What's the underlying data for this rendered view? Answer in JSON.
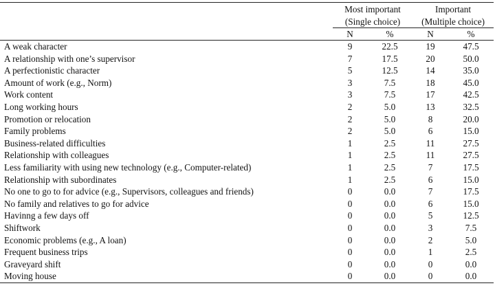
{
  "header": {
    "group1_line1": "Most important",
    "group1_line2": "(Single choice)",
    "group2_line1": "Important",
    "group2_line2": "(Multiple choice)",
    "col_n": "N",
    "col_pct": "%"
  },
  "rows": [
    {
      "label": "A weak character",
      "n1": "9",
      "p1": "22.5",
      "n2": "19",
      "p2": "47.5"
    },
    {
      "label": "A relationship with one’s supervisor",
      "n1": "7",
      "p1": "17.5",
      "n2": "20",
      "p2": "50.0"
    },
    {
      "label": "A perfectionistic character",
      "n1": "5",
      "p1": "12.5",
      "n2": "14",
      "p2": "35.0"
    },
    {
      "label": "Amount of work (e.g., Norm)",
      "n1": "3",
      "p1": "7.5",
      "n2": "18",
      "p2": "45.0"
    },
    {
      "label": "Work content",
      "n1": "3",
      "p1": "7.5",
      "n2": "17",
      "p2": "42.5"
    },
    {
      "label": "Long working hours",
      "n1": "2",
      "p1": "5.0",
      "n2": "13",
      "p2": "32.5"
    },
    {
      "label": "Promotion or relocation",
      "n1": "2",
      "p1": "5.0",
      "n2": "8",
      "p2": "20.0"
    },
    {
      "label": "Family problems",
      "n1": "2",
      "p1": "5.0",
      "n2": "6",
      "p2": "15.0"
    },
    {
      "label": "Business-related difficulties",
      "n1": "1",
      "p1": "2.5",
      "n2": "11",
      "p2": "27.5"
    },
    {
      "label": "Relationship with colleagues",
      "n1": "1",
      "p1": "2.5",
      "n2": "11",
      "p2": "27.5"
    },
    {
      "label": "Less familiarity with using new technology (e.g., Computer-related)",
      "n1": "1",
      "p1": "2.5",
      "n2": "7",
      "p2": "17.5"
    },
    {
      "label": "Relationship with subordinates",
      "n1": "1",
      "p1": "2.5",
      "n2": "6",
      "p2": "15.0"
    },
    {
      "label": "No one to go to for advice (e.g., Supervisors, colleagues and friends)",
      "n1": "0",
      "p1": "0.0",
      "n2": "7",
      "p2": "17.5"
    },
    {
      "label": "No family and relatives to go for advice",
      "n1": "0",
      "p1": "0.0",
      "n2": "6",
      "p2": "15.0"
    },
    {
      "label": "Havinng a few days off",
      "n1": "0",
      "p1": "0.0",
      "n2": "5",
      "p2": "12.5"
    },
    {
      "label": "Shiftwork",
      "n1": "0",
      "p1": "0.0",
      "n2": "3",
      "p2": "7.5"
    },
    {
      "label": "Economic problems (e.g., A loan)",
      "n1": "0",
      "p1": "0.0",
      "n2": "2",
      "p2": "5.0"
    },
    {
      "label": "Frequent business trips",
      "n1": "0",
      "p1": "0.0",
      "n2": "1",
      "p2": "2.5"
    },
    {
      "label": "Graveyard shift",
      "n1": "0",
      "p1": "0.0",
      "n2": "0",
      "p2": "0.0"
    },
    {
      "label": "Moving house",
      "n1": "0",
      "p1": "0.0",
      "n2": "0",
      "p2": "0.0"
    }
  ]
}
